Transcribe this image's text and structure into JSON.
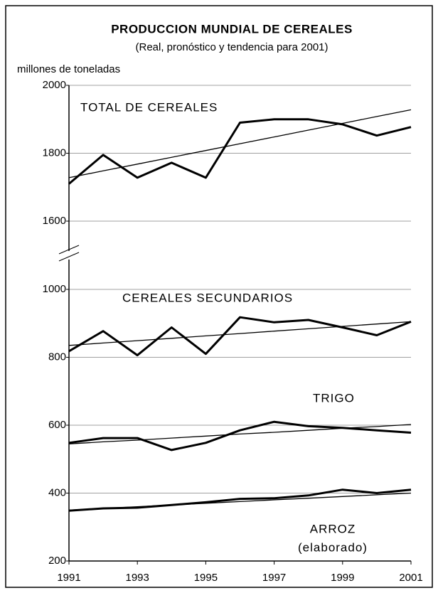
{
  "chart_data": {
    "type": "line",
    "title": "PRODUCCION MUNDIAL DE CEREALES",
    "subtitle": "(Real, pronóstico y tendencia para 2001)",
    "y_label": "millones de toneladas",
    "x": [
      1991,
      1992,
      1993,
      1994,
      1995,
      1996,
      1997,
      1998,
      1999,
      2000,
      2001
    ],
    "xlim": [
      1991,
      2001
    ],
    "xticks": [
      1991,
      1993,
      1995,
      1997,
      1999,
      2001
    ],
    "ylim": [
      200,
      2000
    ],
    "yticks": [
      200,
      400,
      600,
      800,
      1000,
      1600,
      1800,
      2000
    ],
    "axis_break": [
      1000,
      1600
    ],
    "grid": true,
    "color": "#000000",
    "series": [
      {
        "name": "TOTAL DE CEREALES",
        "values": [
          1710,
          1795,
          1728,
          1772,
          1728,
          1890,
          1900,
          1900,
          1885,
          1852,
          1877
        ],
        "trend": [
          1728,
          1748,
          1768,
          1788,
          1808,
          1828,
          1848,
          1868,
          1888,
          1908,
          1928
        ]
      },
      {
        "name": "CEREALES SECUNDARIOS",
        "values": [
          818,
          877,
          806,
          888,
          810,
          918,
          903,
          910,
          888,
          865,
          905
        ],
        "trend": [
          835,
          842,
          849,
          856,
          863,
          870,
          877,
          884,
          891,
          898,
          905
        ]
      },
      {
        "name": "TRIGO",
        "values": [
          548,
          562,
          562,
          527,
          548,
          585,
          610,
          597,
          592,
          585,
          578
        ],
        "trend": [
          545,
          551,
          556,
          562,
          568,
          574,
          579,
          585,
          591,
          596,
          602
        ]
      },
      {
        "name": "ARROZ",
        "subname": "(elaborado)",
        "values": [
          348,
          355,
          357,
          365,
          373,
          383,
          385,
          393,
          410,
          400,
          410
        ],
        "trend": [
          350,
          355,
          360,
          365,
          370,
          375,
          380,
          385,
          390,
          395,
          400
        ]
      }
    ]
  }
}
